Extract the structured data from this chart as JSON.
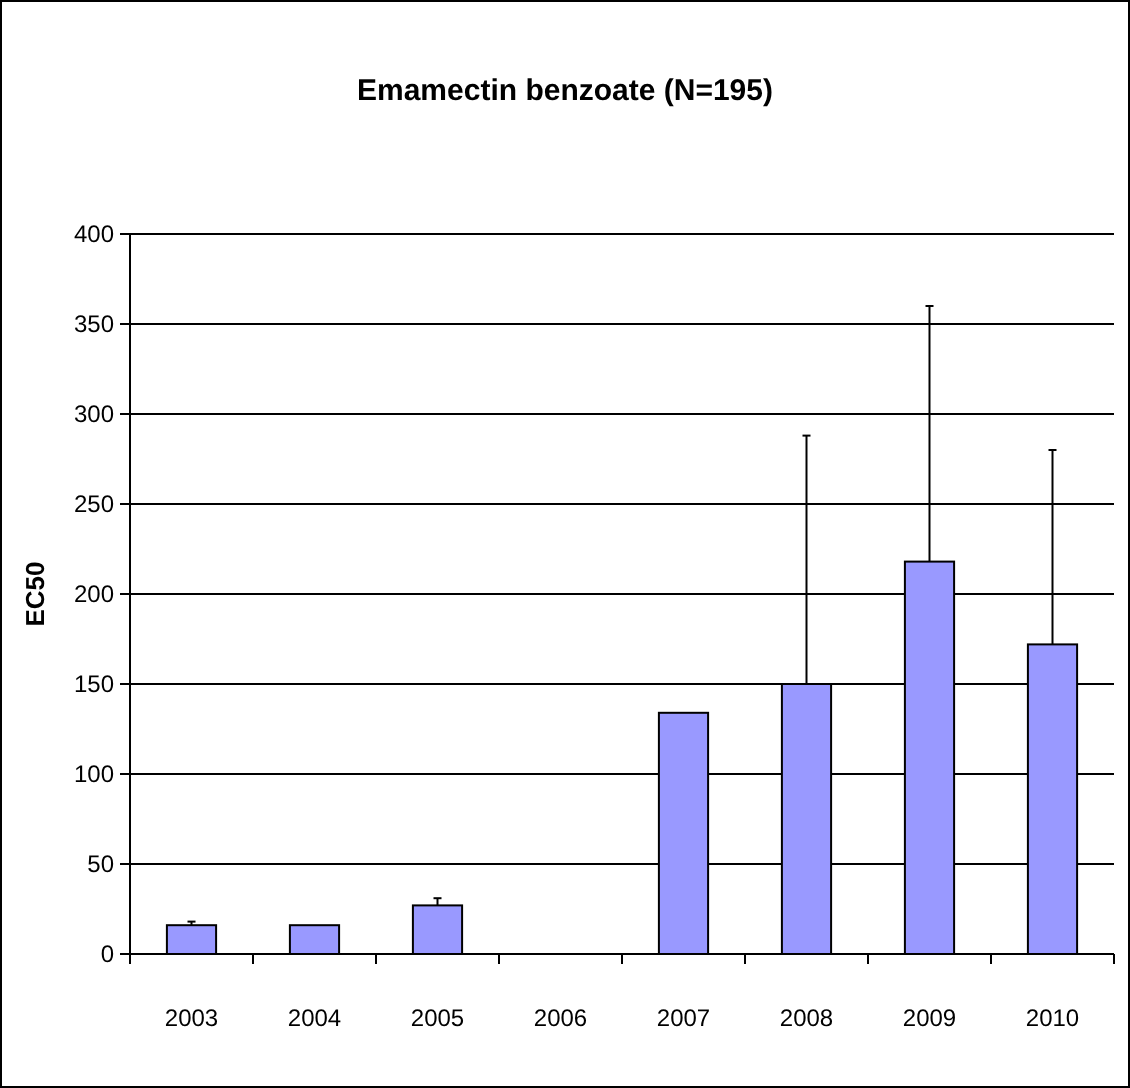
{
  "chart_data": {
    "type": "bar",
    "title": "Emamectin benzoate (N=195)",
    "ylabel": "EC50",
    "categories": [
      "2003",
      "2004",
      "2005",
      "2006",
      "2007",
      "2008",
      "2009",
      "2010"
    ],
    "values": [
      16,
      16,
      27,
      null,
      134,
      150,
      218,
      172
    ],
    "errors": [
      [
        16,
        18
      ],
      null,
      [
        27,
        31
      ],
      null,
      null,
      [
        150,
        288
      ],
      [
        218,
        360
      ],
      [
        172,
        280
      ]
    ],
    "color": "#9999ff",
    "ylim": [
      0,
      400
    ],
    "yticks": [
      0,
      50,
      100,
      150,
      200,
      250,
      300,
      350,
      400
    ],
    "grid": "y"
  }
}
